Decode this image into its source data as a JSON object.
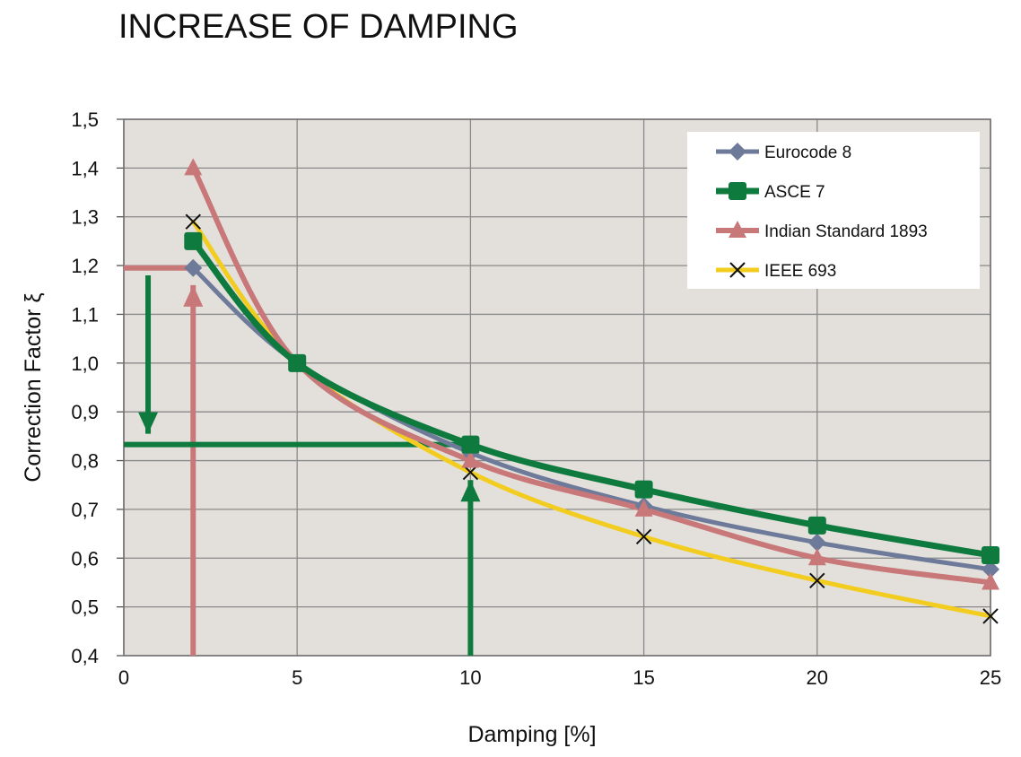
{
  "chart_data": {
    "type": "line",
    "title": "INCREASE OF DAMPING",
    "xlabel": "Damping [%]",
    "ylabel": "Correction Factor ξ",
    "xlim": [
      0,
      25
    ],
    "ylim": [
      0.4,
      1.5
    ],
    "x_ticks": [
      "0",
      "5",
      "10",
      "15",
      "20",
      "25"
    ],
    "y_ticks": [
      "0,4",
      "0,5",
      "0,6",
      "0,7",
      "0,8",
      "0,9",
      "1,0",
      "1,1",
      "1,2",
      "1,3",
      "1,4",
      "1,5"
    ],
    "grid": true,
    "legend_position": "top-right",
    "series": [
      {
        "name": "Eurocode 8",
        "color": "#6E7A9A",
        "marker": "diamond",
        "x": [
          2,
          5,
          10,
          15,
          20,
          25
        ],
        "y": [
          1.195,
          1.0,
          0.816,
          0.707,
          0.632,
          0.577
        ]
      },
      {
        "name": "ASCE 7",
        "color": "#0F7A3E",
        "marker": "square",
        "x": [
          2,
          5,
          10,
          15,
          20,
          25
        ],
        "y": [
          1.25,
          1.0,
          0.833,
          0.741,
          0.667,
          0.606
        ]
      },
      {
        "name": "Indian Standard 1893",
        "color": "#C87878",
        "marker": "triangle",
        "x": [
          2,
          5,
          10,
          15,
          20,
          25
        ],
        "y": [
          1.4,
          1.0,
          0.8,
          0.7,
          0.6,
          0.55
        ]
      },
      {
        "name": "IEEE 693",
        "color": "#F2CC1F",
        "marker": "x",
        "x": [
          2,
          5,
          10,
          15,
          20,
          25
        ],
        "y": [
          1.29,
          1.0,
          0.776,
          0.644,
          0.554,
          0.481
        ]
      }
    ],
    "annotations": [
      {
        "kind": "arrow",
        "color": "#C87878",
        "points": [
          [
            2,
            0.4
          ],
          [
            2,
            1.16
          ]
        ]
      },
      {
        "kind": "arrow",
        "color": "#0F7A3E",
        "points": [
          [
            10,
            0.4
          ],
          [
            10,
            0.76
          ]
        ]
      },
      {
        "kind": "line",
        "color": "#C87878",
        "points": [
          [
            0,
            1.195
          ],
          [
            2,
            1.195
          ]
        ]
      },
      {
        "kind": "arrow",
        "color": "#0F7A3E",
        "points": [
          [
            0.7,
            1.18
          ],
          [
            0.7,
            0.855
          ]
        ]
      },
      {
        "kind": "line",
        "color": "#0F7A3E",
        "points": [
          [
            0,
            0.833
          ],
          [
            10,
            0.833
          ]
        ]
      }
    ]
  }
}
